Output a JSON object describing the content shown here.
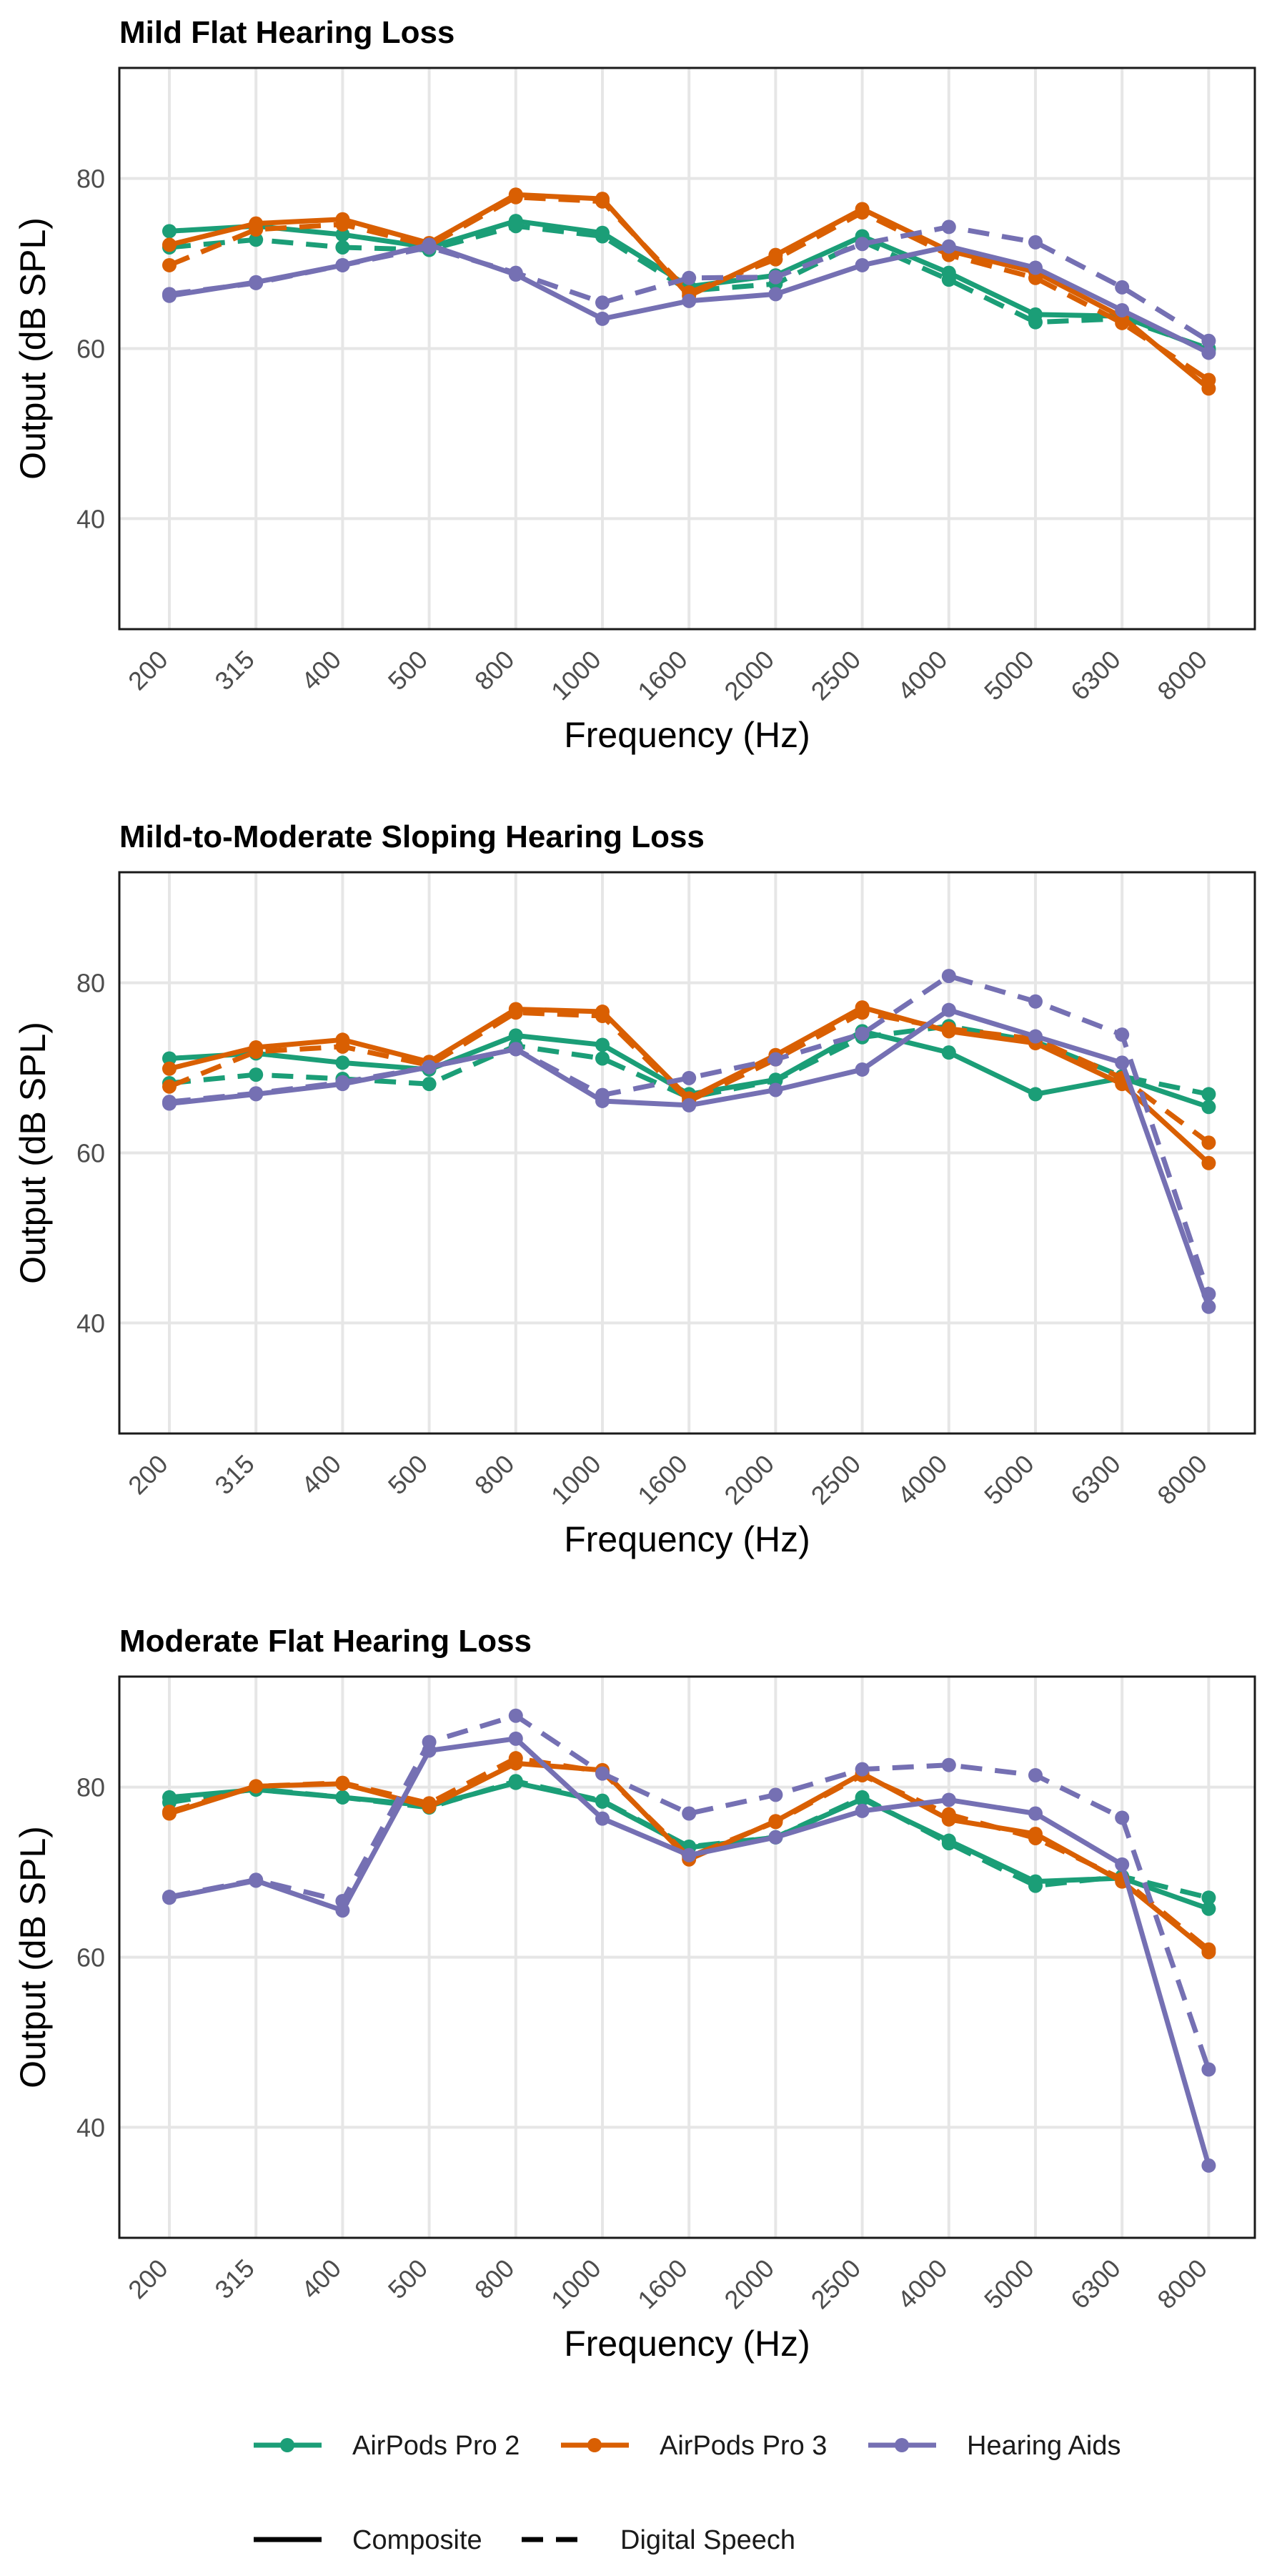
{
  "chart_data": [
    {
      "type": "line",
      "title": "Mild Flat Hearing Loss",
      "xlabel": "Frequency (Hz)",
      "ylabel": "Output (dB SPL)",
      "categories": [
        "200",
        "315",
        "400",
        "500",
        "800",
        "1000",
        "1600",
        "2000",
        "2500",
        "4000",
        "5000",
        "6300",
        "8000"
      ],
      "yticks": [
        "40",
        "60",
        "80"
      ],
      "ylim": [
        27,
        93
      ],
      "grid": true,
      "series": [
        {
          "name": "AirPods Pro 2",
          "style": "Composite",
          "color": "#1b9e77",
          "values": [
            73.8,
            74.4,
            73.4,
            71.9,
            75.0,
            73.6,
            67.3,
            68.6,
            73.2,
            68.9,
            64.0,
            63.8,
            59.8
          ]
        },
        {
          "name": "AirPods Pro 2",
          "style": "Digital Speech",
          "color": "#1b9e77",
          "values": [
            71.9,
            72.8,
            71.9,
            71.6,
            74.4,
            73.2,
            66.8,
            67.6,
            72.6,
            68.1,
            63.1,
            63.5,
            60.0
          ]
        },
        {
          "name": "AirPods Pro 3",
          "style": "Composite",
          "color": "#d95f02",
          "values": [
            72.2,
            74.7,
            75.2,
            72.4,
            78.1,
            77.6,
            66.2,
            71.0,
            76.4,
            71.5,
            69.0,
            63.7,
            55.3
          ]
        },
        {
          "name": "AirPods Pro 3",
          "style": "Digital Speech",
          "color": "#d95f02",
          "values": [
            69.8,
            74.0,
            74.6,
            72.1,
            77.8,
            77.3,
            66.6,
            70.5,
            76.0,
            71.0,
            68.3,
            63.0,
            56.3
          ]
        },
        {
          "name": "Hearing Aids",
          "style": "Composite",
          "color": "#7570b3",
          "values": [
            66.2,
            67.8,
            69.8,
            72.2,
            68.7,
            63.5,
            65.6,
            66.4,
            69.8,
            72.0,
            69.5,
            64.5,
            59.5
          ]
        },
        {
          "name": "Hearing Aids",
          "style": "Digital Speech",
          "color": "#7570b3",
          "values": [
            66.4,
            67.7,
            69.8,
            71.9,
            68.9,
            65.4,
            68.3,
            68.4,
            72.3,
            74.3,
            72.5,
            67.2,
            60.9
          ]
        }
      ]
    },
    {
      "type": "line",
      "title": "Mild-to-Moderate Sloping Hearing Loss",
      "xlabel": "Frequency (Hz)",
      "ylabel": "Output (dB SPL)",
      "categories": [
        "200",
        "315",
        "400",
        "500",
        "800",
        "1000",
        "1600",
        "2000",
        "2500",
        "4000",
        "5000",
        "6300",
        "8000"
      ],
      "yticks": [
        "40",
        "60",
        "80"
      ],
      "ylim": [
        27,
        93
      ],
      "grid": true,
      "series": [
        {
          "name": "AirPods Pro 2",
          "style": "Composite",
          "color": "#1b9e77",
          "values": [
            71.1,
            71.7,
            70.6,
            69.8,
            73.8,
            72.7,
            66.9,
            68.6,
            74.3,
            71.8,
            66.9,
            68.8,
            65.4
          ]
        },
        {
          "name": "AirPods Pro 2",
          "style": "Digital Speech",
          "color": "#1b9e77",
          "values": [
            68.2,
            69.2,
            68.7,
            68.1,
            72.6,
            71.1,
            66.5,
            68.5,
            73.6,
            74.9,
            73.1,
            69.0,
            66.9
          ]
        },
        {
          "name": "AirPods Pro 3",
          "style": "Composite",
          "color": "#d95f02",
          "values": [
            69.9,
            72.4,
            73.3,
            70.7,
            76.9,
            76.6,
            66.4,
            71.5,
            77.1,
            74.3,
            72.9,
            68.1,
            58.8
          ]
        },
        {
          "name": "AirPods Pro 3",
          "style": "Digital Speech",
          "color": "#d95f02",
          "values": [
            67.8,
            71.9,
            72.5,
            70.3,
            76.5,
            76.1,
            66.1,
            71.0,
            76.5,
            74.6,
            73.4,
            68.8,
            61.2
          ]
        },
        {
          "name": "Hearing Aids",
          "style": "Composite",
          "color": "#7570b3",
          "values": [
            65.8,
            66.9,
            68.1,
            70.1,
            72.2,
            66.1,
            65.6,
            67.4,
            69.8,
            76.8,
            73.7,
            70.6,
            41.9
          ]
        },
        {
          "name": "Hearing Aids",
          "style": "Digital Speech",
          "color": "#7570b3",
          "values": [
            66.0,
            67.0,
            68.3,
            70.1,
            72.2,
            66.8,
            68.8,
            71.0,
            74.0,
            80.8,
            77.8,
            73.9,
            43.4
          ]
        }
      ]
    },
    {
      "type": "line",
      "title": "Moderate Flat Hearing Loss",
      "xlabel": "Frequency (Hz)",
      "ylabel": "Output (dB SPL)",
      "categories": [
        "200",
        "315",
        "400",
        "500",
        "800",
        "1000",
        "1600",
        "2000",
        "2500",
        "4000",
        "5000",
        "6300",
        "8000"
      ],
      "yticks": [
        "40",
        "60",
        "80"
      ],
      "ylim": [
        27,
        93
      ],
      "grid": true,
      "series": [
        {
          "name": "AirPods Pro 2",
          "style": "Composite",
          "color": "#1b9e77",
          "values": [
            78.8,
            79.7,
            78.8,
            77.8,
            80.5,
            78.3,
            72.9,
            74.1,
            78.6,
            73.7,
            68.9,
            69.3,
            65.7
          ]
        },
        {
          "name": "AirPods Pro 2",
          "style": "Digital Speech",
          "color": "#1b9e77",
          "values": [
            78.2,
            79.8,
            78.8,
            77.6,
            80.7,
            78.4,
            73.0,
            74.1,
            78.8,
            73.4,
            68.4,
            69.5,
            67.0
          ]
        },
        {
          "name": "AirPods Pro 3",
          "style": "Composite",
          "color": "#d95f02",
          "values": [
            76.9,
            80.1,
            80.4,
            77.7,
            82.8,
            82.0,
            71.5,
            76.0,
            81.6,
            76.2,
            74.5,
            68.9,
            60.6
          ]
        },
        {
          "name": "AirPods Pro 3",
          "style": "Digital Speech",
          "color": "#d95f02",
          "values": [
            77.1,
            80.1,
            80.5,
            78.1,
            83.4,
            81.8,
            71.8,
            75.9,
            81.4,
            76.8,
            74.0,
            69.2,
            60.9
          ]
        },
        {
          "name": "Hearing Aids",
          "style": "Composite",
          "color": "#7570b3",
          "values": [
            67.0,
            69.0,
            65.5,
            84.3,
            85.7,
            76.3,
            72.0,
            74.1,
            77.2,
            78.5,
            76.9,
            70.9,
            35.5
          ]
        },
        {
          "name": "Hearing Aids",
          "style": "Digital Speech",
          "color": "#7570b3",
          "values": [
            67.1,
            69.1,
            66.6,
            85.3,
            88.4,
            81.6,
            76.9,
            79.1,
            82.1,
            82.6,
            81.4,
            76.4,
            46.8
          ]
        }
      ]
    }
  ],
  "legend": {
    "devices": [
      {
        "label": "AirPods Pro 2",
        "color": "#1b9e77"
      },
      {
        "label": "AirPods Pro 3",
        "color": "#d95f02"
      },
      {
        "label": "Hearing Aids",
        "color": "#7570b3"
      }
    ],
    "styles": [
      {
        "label": "Composite",
        "dashed": false
      },
      {
        "label": "Digital Speech",
        "dashed": true
      }
    ]
  }
}
